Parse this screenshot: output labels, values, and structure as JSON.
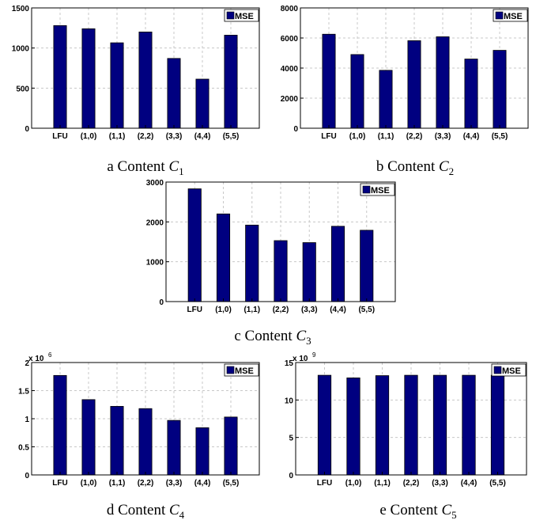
{
  "colors": {
    "bar": "#000080",
    "grid": "#c8c8c8",
    "axis": "#000000"
  },
  "legend_label": "MSE",
  "captions": [
    {
      "letter": "a",
      "word": "Content",
      "symbol": "C",
      "sub": "1"
    },
    {
      "letter": "b",
      "word": "Content",
      "symbol": "C",
      "sub": "2"
    },
    {
      "letter": "c",
      "word": "Content",
      "symbol": "C",
      "sub": "3"
    },
    {
      "letter": "d",
      "word": "Content",
      "symbol": "C",
      "sub": "4"
    },
    {
      "letter": "e",
      "word": "Content",
      "symbol": "C",
      "sub": "5"
    }
  ],
  "chart_data": [
    {
      "type": "bar",
      "categories": [
        "LFU",
        "(1,0)",
        "(1,1)",
        "(2,2)",
        "(3,3)",
        "(4,4)",
        "(5,5)"
      ],
      "series": [
        {
          "name": "MSE",
          "values": [
            1280,
            1240,
            1065,
            1200,
            870,
            612,
            1160
          ]
        }
      ],
      "ylim": [
        0,
        1500
      ],
      "yticks": [
        0,
        500,
        1000,
        1500
      ],
      "ytick_labels": [
        "0",
        "500",
        "1000",
        "1500"
      ],
      "exponent": "",
      "grid": true,
      "legend": "top-right"
    },
    {
      "type": "bar",
      "categories": [
        "LFU",
        "(1,0)",
        "(1,1)",
        "(2,2)",
        "(3,3)",
        "(4,4)",
        "(5,5)"
      ],
      "series": [
        {
          "name": "MSE",
          "values": [
            6250,
            4900,
            3850,
            5820,
            6080,
            4600,
            5180
          ]
        }
      ],
      "ylim": [
        0,
        8000
      ],
      "yticks": [
        0,
        2000,
        4000,
        6000,
        8000
      ],
      "ytick_labels": [
        "0",
        "2000",
        "4000",
        "6000",
        "8000"
      ],
      "exponent": "",
      "grid": true,
      "legend": "top-right"
    },
    {
      "type": "bar",
      "categories": [
        "LFU",
        "(1,0)",
        "(1,1)",
        "(2,2)",
        "(3,3)",
        "(4,4)",
        "(5,5)"
      ],
      "series": [
        {
          "name": "MSE",
          "values": [
            2830,
            2200,
            1920,
            1530,
            1480,
            1890,
            1790
          ]
        }
      ],
      "ylim": [
        0,
        3000
      ],
      "yticks": [
        0,
        1000,
        2000,
        3000
      ],
      "ytick_labels": [
        "0",
        "1000",
        "2000",
        "3000"
      ],
      "exponent": "",
      "grid": true,
      "legend": "top-right"
    },
    {
      "type": "bar",
      "categories": [
        "LFU",
        "(1,0)",
        "(1,1)",
        "(2,2)",
        "(3,3)",
        "(4,4)",
        "(5,5)"
      ],
      "series": [
        {
          "name": "MSE",
          "values": [
            1770000,
            1340000,
            1220000,
            1180000,
            970000,
            840000,
            1030000
          ]
        }
      ],
      "ylim": [
        0,
        2000000
      ],
      "yticks": [
        0,
        500000,
        1000000,
        1500000,
        2000000
      ],
      "ytick_labels": [
        "0",
        "0.5",
        "1",
        "1.5",
        "2"
      ],
      "exponent": "6",
      "grid": true,
      "legend": "top-right"
    },
    {
      "type": "bar",
      "categories": [
        "LFU",
        "(1,0)",
        "(1,1)",
        "(2,2)",
        "(3,3)",
        "(4,4)",
        "(5,5)"
      ],
      "series": [
        {
          "name": "MSE",
          "values": [
            13300000000,
            12950000000,
            13250000000,
            13300000000,
            13300000000,
            13300000000,
            13300000000
          ]
        }
      ],
      "ylim": [
        0,
        15000000000
      ],
      "yticks": [
        0,
        5000000000,
        10000000000,
        15000000000
      ],
      "ytick_labels": [
        "0",
        "5",
        "10",
        "15"
      ],
      "exponent": "9",
      "grid": true,
      "legend": "top-right"
    }
  ]
}
